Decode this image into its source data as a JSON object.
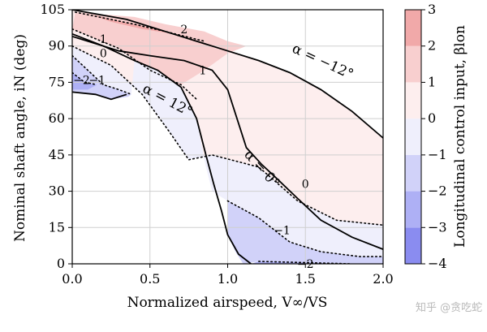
{
  "chart_data": {
    "type": "contour",
    "xlabel": "Normalized airspeed, V∞/VS",
    "ylabel": "Nominal shaft angle, iN (deg)",
    "xlim": [
      0.0,
      2.0
    ],
    "ylim": [
      0,
      105
    ],
    "xticks": [
      "0.0",
      "0.5",
      "1.0",
      "1.5",
      "2.0"
    ],
    "yticks": [
      "0",
      "15",
      "30",
      "45",
      "60",
      "75",
      "90",
      "105"
    ],
    "grid": true,
    "colorbar": {
      "label": "Longitudinal control input, βlon",
      "range": [
        -4,
        3
      ],
      "ticks": [
        "−4",
        "−3",
        "−2",
        "−1",
        "0",
        "1",
        "2",
        "3"
      ],
      "colormap": "bwr",
      "levels": [
        {
          "from": -4,
          "to": -3,
          "color": "#8a8cf0"
        },
        {
          "from": -3,
          "to": -2,
          "color": "#aeb0f5"
        },
        {
          "from": -2,
          "to": -1,
          "color": "#d1d2f9"
        },
        {
          "from": -1,
          "to": 0,
          "color": "#efeffc"
        },
        {
          "from": 0,
          "to": 1,
          "color": "#fdeeee"
        },
        {
          "from": 1,
          "to": 2,
          "color": "#f8cfcf"
        },
        {
          "from": 2,
          "to": 3,
          "color": "#f1a9a9"
        }
      ]
    },
    "control_contours": [
      {
        "level": 2,
        "label": "2",
        "points": [
          [
            0.02,
            104
          ],
          [
            0.4,
            99
          ],
          [
            0.6,
            96
          ],
          [
            0.85,
            92
          ]
        ]
      },
      {
        "level": 1,
        "label": "1",
        "points": [
          [
            0.0,
            97
          ],
          [
            0.3,
            89
          ],
          [
            0.5,
            80
          ],
          [
            0.7,
            74
          ],
          [
            0.8,
            68
          ]
        ]
      },
      {
        "level": 0,
        "label": "0",
        "points": [
          [
            0.0,
            90
          ],
          [
            0.25,
            82
          ],
          [
            0.45,
            70
          ],
          [
            0.62,
            55
          ],
          [
            0.75,
            43
          ],
          [
            0.9,
            45
          ],
          [
            1.2,
            40
          ],
          [
            1.45,
            26
          ],
          [
            1.7,
            18
          ],
          [
            2.0,
            16
          ]
        ]
      },
      {
        "level": -1,
        "label": "−1",
        "points": [
          [
            0.0,
            86
          ],
          [
            0.1,
            80
          ],
          [
            0.2,
            74
          ],
          [
            0.3,
            72
          ],
          [
            0.38,
            70
          ]
        ]
      },
      {
        "level": -1,
        "label": "−1",
        "points": [
          [
            1.0,
            26
          ],
          [
            1.2,
            19
          ],
          [
            1.4,
            9
          ],
          [
            1.6,
            5
          ],
          [
            1.85,
            3
          ],
          [
            2.0,
            3
          ]
        ]
      },
      {
        "level": -2,
        "label": "−2",
        "points": [
          [
            0.0,
            79
          ],
          [
            0.08,
            75
          ],
          [
            0.16,
            74
          ]
        ]
      },
      {
        "level": -2,
        "label": "−2",
        "points": [
          [
            1.2,
            1
          ],
          [
            1.5,
            0.5
          ],
          [
            1.8,
            0
          ]
        ]
      }
    ],
    "alpha_contours": [
      {
        "label": "α = −12°",
        "points": [
          [
            0.0,
            105
          ],
          [
            0.35,
            101
          ],
          [
            0.7,
            94
          ],
          [
            0.95,
            89
          ],
          [
            1.2,
            84
          ],
          [
            1.4,
            79
          ],
          [
            1.6,
            72
          ],
          [
            1.8,
            63
          ],
          [
            2.0,
            52
          ]
        ]
      },
      {
        "label": "α = 12°",
        "points": [
          [
            0.0,
            94
          ],
          [
            0.3,
            88
          ],
          [
            0.5,
            86
          ],
          [
            0.72,
            84
          ],
          [
            0.9,
            80
          ],
          [
            1.0,
            72
          ],
          [
            1.05,
            62
          ],
          [
            1.12,
            48
          ],
          [
            1.22,
            41
          ],
          [
            1.32,
            35
          ],
          [
            1.45,
            27
          ],
          [
            1.6,
            18
          ],
          [
            1.8,
            11
          ],
          [
            2.0,
            6
          ]
        ]
      },
      {
        "label": "α = 0°",
        "points": [
          [
            0.0,
            95
          ],
          [
            0.2,
            90
          ],
          [
            0.4,
            84
          ],
          [
            0.55,
            80
          ],
          [
            0.7,
            73
          ],
          [
            0.8,
            60
          ],
          [
            0.86,
            45
          ],
          [
            0.91,
            33
          ],
          [
            0.96,
            22
          ],
          [
            1.0,
            12
          ],
          [
            1.07,
            4
          ],
          [
            1.15,
            0
          ]
        ]
      },
      {
        "label": "",
        "points": [
          [
            0.0,
            71
          ],
          [
            0.15,
            70
          ],
          [
            0.25,
            68
          ],
          [
            0.35,
            70
          ]
        ]
      }
    ],
    "contour_labels": [
      {
        "text": "1",
        "x": 0.2,
        "y": 93
      },
      {
        "text": "0",
        "x": 0.2,
        "y": 87
      },
      {
        "text": "−1",
        "x": 0.16,
        "y": 76
      },
      {
        "text": "−2",
        "x": 0.06,
        "y": 76
      },
      {
        "text": "2",
        "x": 0.72,
        "y": 97
      },
      {
        "text": "1",
        "x": 0.84,
        "y": 80
      },
      {
        "text": "0",
        "x": 1.5,
        "y": 33
      },
      {
        "text": "−1",
        "x": 1.35,
        "y": 14
      },
      {
        "text": "−2",
        "x": 1.5,
        "y": 0
      }
    ]
  },
  "watermark": "知乎 @贪吃蛇"
}
